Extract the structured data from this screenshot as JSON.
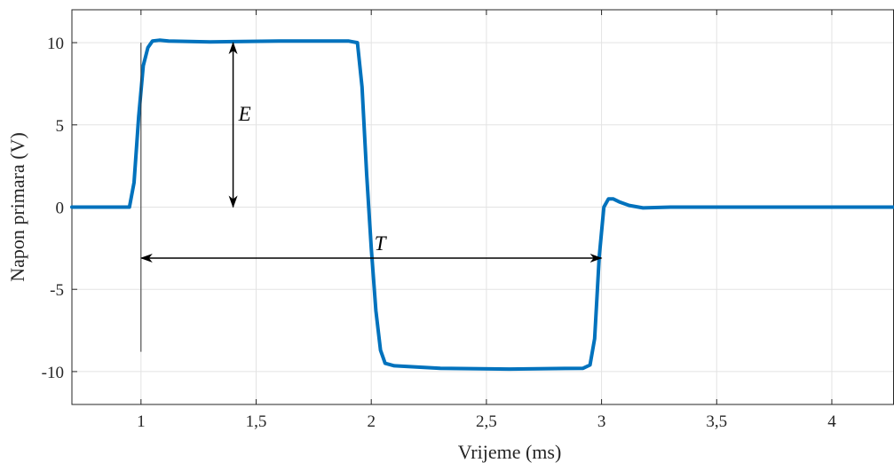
{
  "chart_data": {
    "type": "line",
    "title": "",
    "xlabel": "Vrijeme (ms)",
    "ylabel": "Napon primara (V)",
    "xlim": [
      0.7,
      4.27
    ],
    "ylim": [
      -12,
      12
    ],
    "grid": true,
    "x_ticks": [
      1,
      1.5,
      2,
      2.5,
      3,
      3.5,
      4
    ],
    "x_tick_labels": [
      "1",
      "1,5",
      "2",
      "2,5",
      "3",
      "3,5",
      "4"
    ],
    "y_ticks": [
      10,
      5,
      0,
      -5,
      -10
    ],
    "y_tick_labels": [
      "10",
      "5",
      "0",
      "-5",
      "-10"
    ],
    "series": [
      {
        "color": "#0072bd",
        "x": [
          0.7,
          0.95,
          0.97,
          0.99,
          1.01,
          1.03,
          1.05,
          1.08,
          1.12,
          1.3,
          1.6,
          1.9,
          1.94,
          1.96,
          1.98,
          2.0,
          2.02,
          2.04,
          2.06,
          2.1,
          2.3,
          2.6,
          2.92,
          2.95,
          2.97,
          2.99,
          3.01,
          3.03,
          3.05,
          3.08,
          3.12,
          3.18,
          3.3,
          3.6,
          4.27
        ],
        "y": [
          0,
          0,
          1.5,
          5.5,
          8.6,
          9.7,
          10.1,
          10.15,
          10.1,
          10.05,
          10.1,
          10.1,
          10.0,
          7.3,
          2.0,
          -2.5,
          -6.3,
          -8.7,
          -9.5,
          -9.65,
          -9.8,
          -9.85,
          -9.8,
          -9.6,
          -8.0,
          -3.0,
          0.0,
          0.5,
          0.5,
          0.3,
          0.1,
          -0.05,
          0.0,
          0.0,
          0.0
        ]
      }
    ],
    "annotations": [
      {
        "label": "E",
        "type": "vertical-double-arrow",
        "x": 1.4,
        "y_from": 10,
        "y_to": 0
      },
      {
        "label": "T",
        "type": "horizontal-double-arrow",
        "y": -3.1,
        "x_from": 1.0,
        "x_to": 3.0
      },
      {
        "label": "",
        "type": "marker-line",
        "x": 1.0,
        "y_from": 10,
        "y_to": -8.8
      }
    ]
  }
}
